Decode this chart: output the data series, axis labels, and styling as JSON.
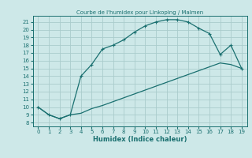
{
  "title": "Courbe de l'humidex pour Linkoping / Malmen",
  "xlabel": "Humidex (Indice chaleur)",
  "xlim": [
    -0.5,
    19.5
  ],
  "ylim": [
    7.5,
    21.8
  ],
  "xticks": [
    0,
    1,
    2,
    3,
    4,
    5,
    6,
    7,
    8,
    9,
    10,
    11,
    12,
    13,
    14,
    15,
    16,
    17,
    18,
    19
  ],
  "yticks": [
    8,
    9,
    10,
    11,
    12,
    13,
    14,
    15,
    16,
    17,
    18,
    19,
    20,
    21
  ],
  "bg_color": "#cde8e8",
  "grid_color": "#aacccc",
  "line_color": "#1a7070",
  "curve1_x": [
    0,
    1,
    2,
    3,
    4,
    5,
    6,
    7,
    8,
    9,
    10,
    11,
    12,
    13,
    14,
    15,
    16,
    17,
    18,
    19
  ],
  "curve1_y": [
    10,
    9,
    8.5,
    9,
    14,
    15.5,
    17.5,
    18,
    18.7,
    19.7,
    20.5,
    21.0,
    21.3,
    21.3,
    21.0,
    20.2,
    19.5,
    16.8,
    18.0,
    15.0
  ],
  "curve2_x": [
    0,
    1,
    2,
    3,
    4,
    5,
    6,
    7,
    8,
    9,
    10,
    11,
    12,
    13,
    14,
    15,
    16,
    17,
    18,
    19
  ],
  "curve2_y": [
    10,
    9,
    8.5,
    9,
    9.2,
    9.8,
    10.2,
    10.7,
    11.2,
    11.7,
    12.2,
    12.7,
    13.2,
    13.7,
    14.2,
    14.7,
    15.2,
    15.7,
    15.5,
    15.0
  ],
  "title_fontsize": 5.0,
  "xlabel_fontsize": 6.0,
  "tick_fontsize": 5.0
}
